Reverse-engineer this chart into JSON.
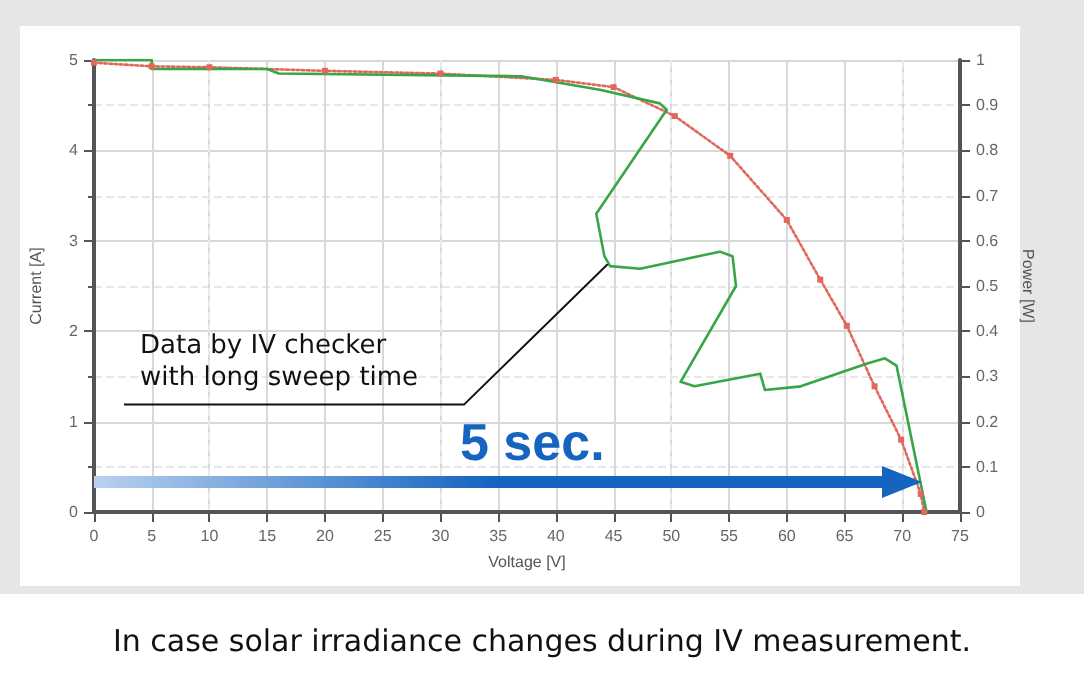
{
  "chart_data": {
    "type": "line",
    "xlabel": "Voltage [V]",
    "ylabel": "Current [A]",
    "y2label": "Power [W]",
    "xlim": [
      0,
      75
    ],
    "xticks": [
      0,
      5,
      10,
      15,
      20,
      25,
      30,
      35,
      40,
      45,
      50,
      55,
      60,
      65,
      70,
      75
    ],
    "ylim": [
      0,
      5
    ],
    "yticks": [
      0,
      1,
      2,
      3,
      4,
      5
    ],
    "y2lim": [
      0,
      1
    ],
    "y2ticks": [
      0,
      0.1,
      0.2,
      0.3,
      0.4,
      0.5,
      0.6,
      0.7,
      0.8,
      0.9,
      1
    ],
    "grid": true,
    "series": [
      {
        "color": "#e0675a",
        "marker": "square",
        "line_style": "dotted",
        "x": [
          0,
          5,
          10,
          20,
          30,
          40,
          45,
          50.3,
          55.1,
          60,
          62.9,
          65.2,
          67.6,
          69.9,
          71.6,
          71.9
        ],
        "values": [
          4.97,
          4.93,
          4.92,
          4.88,
          4.85,
          4.78,
          4.7,
          4.38,
          3.94,
          3.23,
          2.57,
          2.06,
          1.39,
          0.8,
          0.2,
          0
        ]
      },
      {
        "color": "#3aa548",
        "marker": "none",
        "line_style": "solid",
        "x": [
          0,
          5,
          5,
          15,
          16,
          37,
          43.8,
          49,
          49.6,
          43.5,
          44.2,
          44.7,
          47.3,
          54.2,
          55.3,
          55.6,
          50.8,
          52,
          57.7,
          58.1,
          61.2,
          66.9,
          68.5,
          69.5,
          72.1
        ],
        "values": [
          5,
          5,
          4.9,
          4.9,
          4.85,
          4.82,
          4.67,
          4.52,
          4.45,
          3.3,
          2.83,
          2.72,
          2.69,
          2.88,
          2.83,
          2.5,
          1.44,
          1.39,
          1.53,
          1.35,
          1.39,
          1.64,
          1.7,
          1.62,
          0
        ]
      }
    ],
    "annotations": [
      "5 sec.",
      "In case solar irradiance changes during IV measurement.",
      {
        "text": "Data by IV checker\nwith long sweep time",
        "x": 44.5,
        "y": 2.75
      }
    ]
  }
}
